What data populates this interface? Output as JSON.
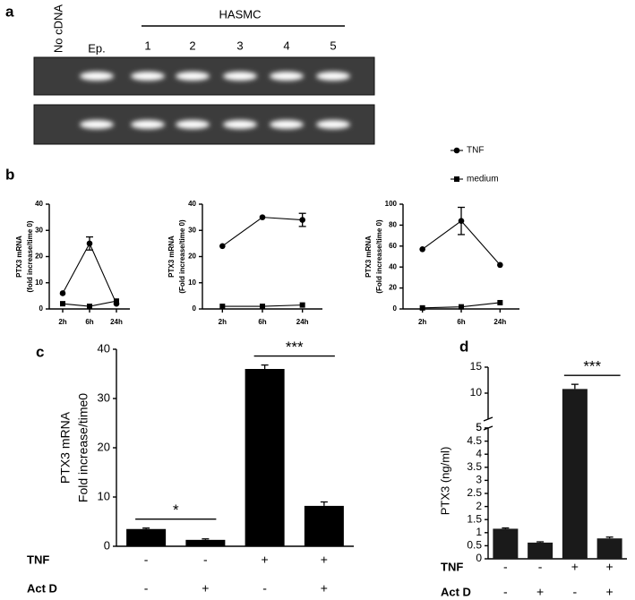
{
  "panel_labels": [
    "a",
    "b",
    "c",
    "d"
  ],
  "gel": {
    "lanes": [
      "No cDNA",
      "Ep.",
      "1",
      "2",
      "3",
      "4",
      "5"
    ],
    "group": "HASMC"
  },
  "chart_data": [
    {
      "type": "line",
      "ylabel": [
        "PTX3 mRNA",
        "(fold increase/time 0)"
      ],
      "categories": [
        "2h",
        "6h",
        "24h"
      ],
      "ylim": [
        0,
        40
      ],
      "yticks": [
        0,
        10,
        20,
        30,
        40
      ],
      "series": [
        {
          "name": "TNF",
          "marker": "circle",
          "color": "#000000",
          "values": [
            6,
            25,
            2
          ],
          "errors": [
            null,
            2.5,
            null
          ]
        },
        {
          "name": "medium",
          "marker": "square",
          "color": "#000000",
          "values": [
            2,
            1,
            3
          ]
        }
      ]
    },
    {
      "type": "line",
      "ylabel": [
        "PTX3 mRNA",
        "(Fold increase/time 0)"
      ],
      "categories": [
        "2h",
        "6h",
        "24h"
      ],
      "ylim": [
        0,
        40
      ],
      "yticks": [
        0,
        10,
        20,
        30,
        40
      ],
      "series": [
        {
          "marker": "circle",
          "color": "#000000",
          "values": [
            24,
            35,
            34
          ],
          "errors": [
            null,
            null,
            2.5
          ]
        },
        {
          "marker": "square",
          "color": "#000000",
          "values": [
            1,
            1,
            1.5
          ]
        }
      ]
    },
    {
      "type": "line",
      "ylabel": [
        "PTX3 mRNA",
        "(Fold increase/time 0)"
      ],
      "categories": [
        "2h",
        "6h",
        "24h"
      ],
      "ylim": [
        0,
        100
      ],
      "yticks": [
        0,
        20,
        40,
        60,
        80,
        100
      ],
      "series": [
        {
          "marker": "circle",
          "color": "#000000",
          "values": [
            57,
            84,
            42
          ],
          "errors": [
            null,
            13,
            null
          ]
        },
        {
          "marker": "square",
          "color": "#000000",
          "values": [
            1,
            2,
            6
          ]
        }
      ]
    },
    {
      "type": "bar",
      "ylabel": [
        "PTX3 mRNA",
        "Fold increase/time0"
      ],
      "ylim": [
        0,
        40
      ],
      "yticks": [
        0,
        10,
        20,
        30,
        40
      ],
      "color": "#000000",
      "values": [
        3.5,
        1.3,
        36,
        8.2
      ],
      "errors": [
        0.2,
        0.2,
        0.8,
        0.8
      ],
      "conditions": [
        {
          "name": "TNF",
          "values": [
            "-",
            "-",
            "+",
            "+"
          ]
        },
        {
          "name": "Act D",
          "values": [
            "-",
            "+",
            "-",
            "+"
          ]
        }
      ],
      "annotations": [
        {
          "text": "*",
          "bars": [
            0,
            1
          ]
        },
        {
          "text": "***",
          "bars": [
            2,
            3
          ]
        }
      ]
    },
    {
      "type": "bar",
      "ylabel": [
        "PTX3 (ng/ml)"
      ],
      "color": "#1a1a1a",
      "values": [
        1.15,
        0.62,
        10.8,
        0.78
      ],
      "errors": [
        0.03,
        0.03,
        0.9,
        0.05
      ],
      "segments": [
        {
          "ylim": [
            0,
            5
          ],
          "yticks": [
            0,
            0.5,
            1,
            1.5,
            2,
            2.5,
            3,
            3.5,
            4,
            4.5,
            5
          ]
        },
        {
          "ylim": [
            5,
            15
          ],
          "yticks": [
            5,
            10,
            15
          ]
        }
      ],
      "conditions": [
        {
          "name": "TNF",
          "values": [
            "-",
            "-",
            "+",
            "+"
          ]
        },
        {
          "name": "Act D",
          "values": [
            "-",
            "+",
            "-",
            "+"
          ]
        }
      ],
      "annotations": [
        {
          "text": "***",
          "bars": [
            2,
            3
          ]
        }
      ]
    }
  ]
}
